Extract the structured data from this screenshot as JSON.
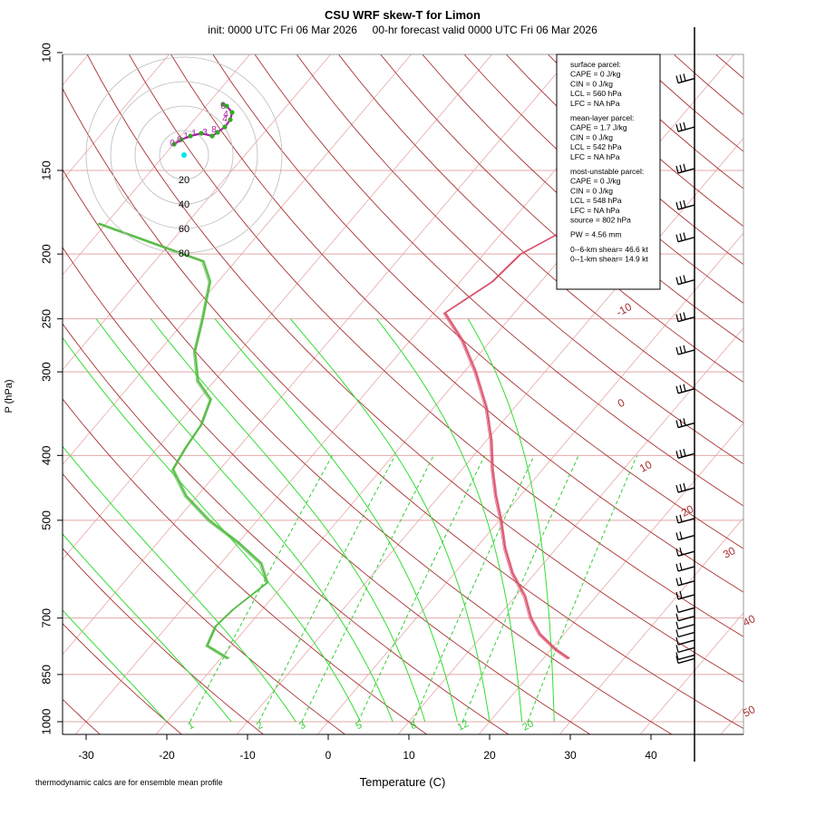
{
  "chart_data": {
    "type": "skew-t",
    "title": "CSU WRF skew-T for Limon",
    "subtitle": "init: 0000 UTC Fri 06 Mar 2026     00-hr forecast valid 0000 UTC Fri 06 Mar 2026",
    "xlabel": "Temperature (C)",
    "ylabel": "P (hPa)",
    "footnote": "thermodynamic calcs are for ensemble mean profile",
    "x_ticks": [
      -30,
      -20,
      -10,
      0,
      10,
      20,
      30,
      40
    ],
    "x_lim": [
      -33,
      45
    ],
    "y_ticks": [
      100,
      150,
      200,
      250,
      300,
      400,
      500,
      700,
      850,
      1000
    ],
    "y_lim": [
      1050,
      100
    ],
    "y_scale": "log",
    "isotherm_labels": [
      "-10",
      "0",
      "10",
      "20",
      "30",
      "40",
      "50"
    ],
    "mixing_ratio_labels": [
      "1",
      "2",
      "3",
      "5",
      "8",
      "12",
      "20"
    ],
    "temperature_profile": [
      {
        "p": 805,
        "t": 23.2
      },
      {
        "p": 780,
        "t": 20.6
      },
      {
        "p": 740,
        "t": 17.0
      },
      {
        "p": 700,
        "t": 14.2
      },
      {
        "p": 650,
        "t": 11.2
      },
      {
        "p": 600,
        "t": 7.2
      },
      {
        "p": 550,
        "t": 3.6
      },
      {
        "p": 500,
        "t": 0.2
      },
      {
        "p": 460,
        "t": -3.0
      },
      {
        "p": 420,
        "t": -6.2
      },
      {
        "p": 380,
        "t": -9.4
      },
      {
        "p": 340,
        "t": -13.4
      },
      {
        "p": 300,
        "t": -18.6
      },
      {
        "p": 270,
        "t": -23.4
      },
      {
        "p": 245,
        "t": -28.6
      },
      {
        "p": 220,
        "t": -26.0
      },
      {
        "p": 200,
        "t": -25.4
      },
      {
        "p": 180,
        "t": -21.6
      },
      {
        "p": 165,
        "t": -21.2
      },
      {
        "p": 150,
        "t": -21.6
      },
      {
        "p": 132,
        "t": -27.4
      },
      {
        "p": 117,
        "t": -33.0
      },
      {
        "p": 113,
        "t": -34.4
      }
    ],
    "dewpoint_profile": [
      {
        "p": 805,
        "t": -19.0
      },
      {
        "p": 770,
        "t": -23.0
      },
      {
        "p": 720,
        "t": -24.0
      },
      {
        "p": 680,
        "t": -23.6
      },
      {
        "p": 620,
        "t": -22.2
      },
      {
        "p": 580,
        "t": -25.0
      },
      {
        "p": 540,
        "t": -30.0
      },
      {
        "p": 500,
        "t": -36.0
      },
      {
        "p": 460,
        "t": -41.4
      },
      {
        "p": 420,
        "t": -45.8
      },
      {
        "p": 390,
        "t": -46.5
      },
      {
        "p": 360,
        "t": -47.0
      },
      {
        "p": 330,
        "t": -48.5
      },
      {
        "p": 310,
        "t": -52.0
      },
      {
        "p": 280,
        "t": -55.5
      },
      {
        "p": 250,
        "t": -58.0
      },
      {
        "p": 220,
        "t": -61.0
      },
      {
        "p": 205,
        "t": -64.0
      },
      {
        "p": 180,
        "t": -81.0
      }
    ],
    "wind_barbs_pressure": [
      110,
      130,
      150,
      170,
      190,
      220,
      250,
      280,
      320,
      360,
      400,
      450,
      500,
      530,
      560,
      590,
      620,
      650,
      680,
      700,
      720,
      740,
      760,
      780,
      800,
      810
    ],
    "hodograph": {
      "ring_labels": [
        "20",
        "40",
        "60",
        "80"
      ],
      "point_labels": [
        "0",
        "0",
        "1",
        "4",
        "3",
        "6",
        "8",
        "4",
        "1"
      ]
    },
    "parcel_box": [
      "surface parcel:",
      "CAPE = 0 J/kg",
      "CIN = 0 J/kg",
      "LCL = 560 hPa",
      "LFC = NA hPa",
      "",
      "mean-layer parcel:",
      "CAPE = 1.7 J/kg",
      "CIN = 0 J/kg",
      "LCL = 542 hPa",
      "LFC = NA hPa",
      "",
      "most-unstable parcel:",
      "CAPE = 0 J/kg",
      "CIN = 0 J/kg",
      "LCL = 548 hPa",
      "LFC = NA hPa",
      "source = 802 hPa",
      "",
      "PW =  4.56 mm",
      "",
      "0--6-km shear= 46.6 kt",
      "0--1-km shear= 14.9 kt"
    ],
    "colors": {
      "isotherm": "#e8a8a8",
      "dry_adiabat": "#a83232",
      "moist_adiabat": "#33dd33",
      "mixing_ratio": "#33cc33",
      "temperature": "#d9506a",
      "dewpoint": "#55bb44",
      "isobar": "#e2a8a8",
      "hodo_line": "#aa22aa",
      "hodo_dot": "#33aa22",
      "hodo_current": "#00e5e5"
    }
  }
}
